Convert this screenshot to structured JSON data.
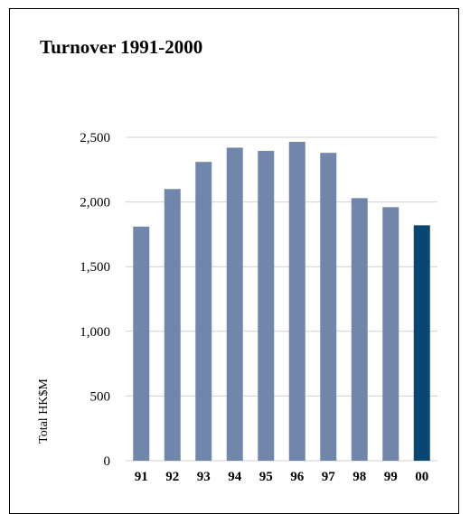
{
  "chart_data": {
    "type": "bar",
    "title": "Turnover 1991-2000",
    "ylabel": "Total HK$M",
    "xlabel": "",
    "categories": [
      "91",
      "92",
      "93",
      "94",
      "95",
      "96",
      "97",
      "98",
      "99",
      "00"
    ],
    "values": [
      1810,
      2100,
      2310,
      2420,
      2395,
      2465,
      2380,
      2030,
      1960,
      1820
    ],
    "ylim": [
      0,
      2500
    ],
    "yticks": [
      0,
      500,
      1000,
      1500,
      2000,
      2500
    ],
    "ytick_labels": [
      "0",
      "500",
      "1,000",
      "1,500",
      "2,000",
      "2,500"
    ],
    "grid": true,
    "colors": {
      "bar": "#7087ab",
      "highlight": "#0a4672",
      "grid": "#d0d0d0"
    },
    "highlight_index": 9
  }
}
